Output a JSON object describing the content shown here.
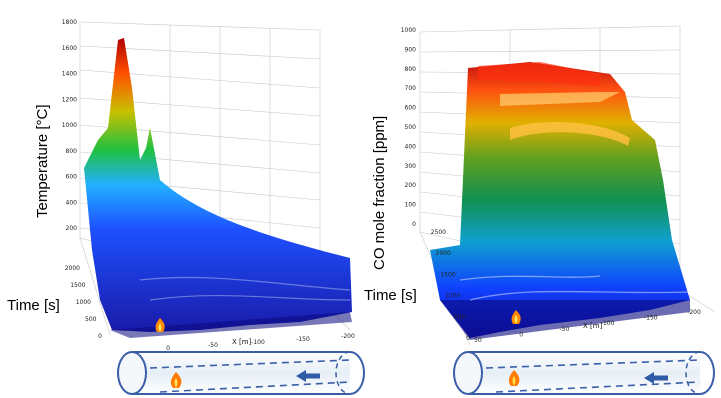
{
  "chart_data": [
    {
      "type": "surface",
      "zlabel": "Temperature [°C]",
      "ylabel": "Time [s]",
      "xlabel": "X [m]",
      "zlim": [
        0,
        1800
      ],
      "z_ticks": [
        "200",
        "400",
        "600",
        "800",
        "1000",
        "1200",
        "1400",
        "1600",
        "1800"
      ],
      "y_ticks": [
        "0",
        "500",
        "1000",
        "1500",
        "2000"
      ],
      "x_ticks": [
        "0",
        "-50",
        "-100",
        "-150",
        "-200"
      ],
      "ridges": [
        {
          "x": 0,
          "t": 0,
          "z": 1700
        },
        {
          "x": 0,
          "t": 300,
          "z": 1150
        },
        {
          "x": 0,
          "t": 2000,
          "z": 650
        }
      ],
      "colormap": [
        "#00008b",
        "#0000ff",
        "#00aaff",
        "#00c000",
        "#d0d000",
        "#ff6000",
        "#c00000"
      ]
    },
    {
      "type": "surface",
      "zlabel": "CO mole fraction [ppm]",
      "ylabel": "Time [s]",
      "xlabel": "X [m]",
      "zlim": [
        0,
        1000
      ],
      "z_ticks": [
        "0",
        "100",
        "200",
        "300",
        "400",
        "500",
        "600",
        "700",
        "800",
        "900",
        "1000"
      ],
      "y_ticks": [
        "0",
        "500",
        "1000",
        "1500",
        "2000",
        "2500"
      ],
      "x_ticks": [
        "50",
        "0",
        "-50",
        "-100",
        "-150",
        "-200"
      ],
      "plateaus": [
        {
          "t": 2500,
          "z": 800
        },
        {
          "t": 1500,
          "z": 700
        },
        {
          "t": 600,
          "z": 450
        }
      ],
      "colormap": [
        "#00008b",
        "#0000ff",
        "#00aaff",
        "#00c000",
        "#d0d000",
        "#ff6000",
        "#c00000"
      ]
    }
  ],
  "tunnels": [
    {
      "name": "tunnel-left"
    },
    {
      "name": "tunnel-right"
    }
  ]
}
